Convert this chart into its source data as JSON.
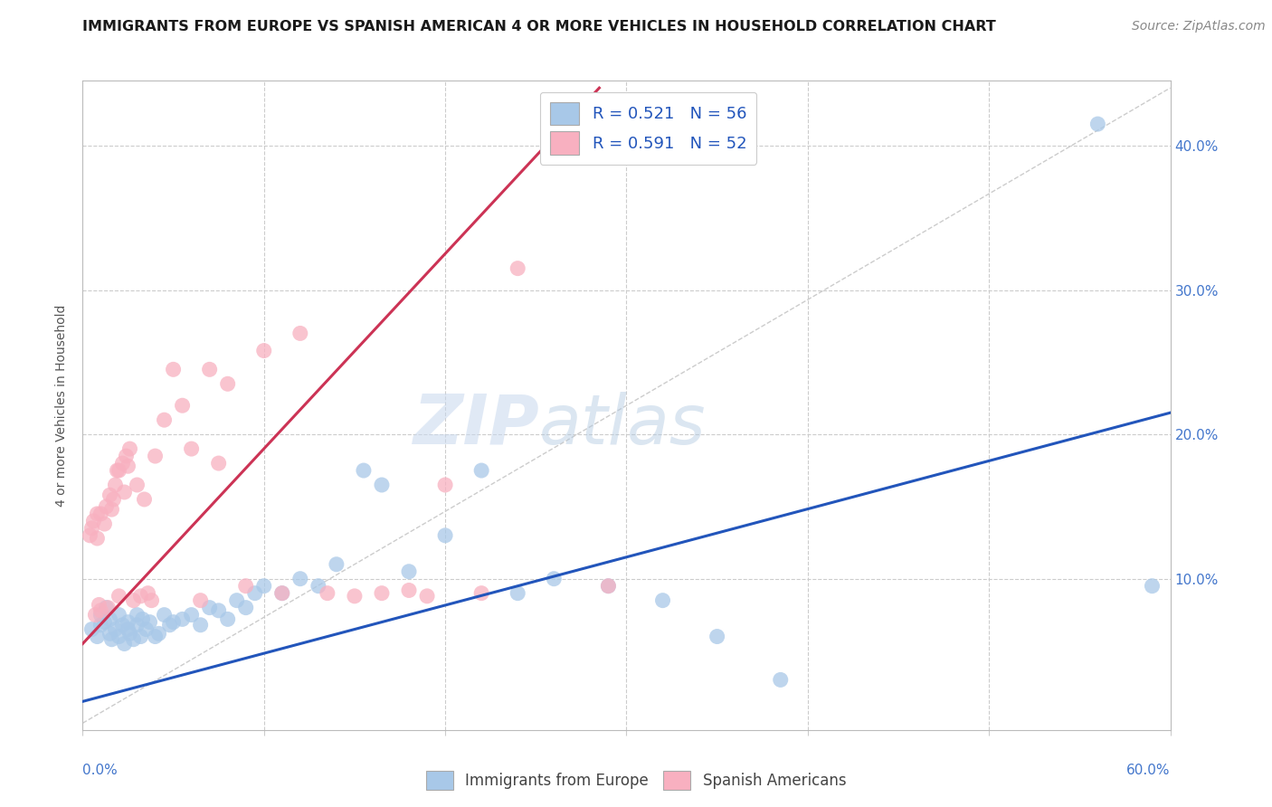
{
  "title": "IMMIGRANTS FROM EUROPE VS SPANISH AMERICAN 4 OR MORE VEHICLES IN HOUSEHOLD CORRELATION CHART",
  "source": "Source: ZipAtlas.com",
  "ylabel": "4 or more Vehicles in Household",
  "yticks_right": [
    "10.0%",
    "20.0%",
    "30.0%",
    "40.0%"
  ],
  "ytick_vals": [
    0.1,
    0.2,
    0.3,
    0.4
  ],
  "xlim": [
    0.0,
    0.6
  ],
  "ylim": [
    -0.005,
    0.445
  ],
  "legend_entry1": "R = 0.521   N = 56",
  "legend_entry2": "R = 0.591   N = 52",
  "legend_label1": "Immigrants from Europe",
  "legend_label2": "Spanish Americans",
  "color_blue": "#a8c8e8",
  "color_pink": "#f8b0c0",
  "line_blue": "#2255bb",
  "line_pink": "#cc3355",
  "watermark_zip": "ZIP",
  "watermark_atlas": "atlas",
  "blue_line_x": [
    0.0,
    0.6
  ],
  "blue_line_y": [
    0.015,
    0.215
  ],
  "pink_line_x": [
    0.0,
    0.285
  ],
  "pink_line_y": [
    0.055,
    0.44
  ],
  "diag_line_x": [
    0.0,
    0.6
  ],
  "diag_line_y": [
    0.0,
    0.44
  ],
  "blue_scatter_x": [
    0.005,
    0.008,
    0.01,
    0.01,
    0.012,
    0.013,
    0.015,
    0.015,
    0.016,
    0.018,
    0.02,
    0.02,
    0.022,
    0.023,
    0.025,
    0.025,
    0.026,
    0.028,
    0.03,
    0.03,
    0.032,
    0.033,
    0.035,
    0.037,
    0.04,
    0.042,
    0.045,
    0.048,
    0.05,
    0.055,
    0.06,
    0.065,
    0.07,
    0.075,
    0.08,
    0.085,
    0.09,
    0.095,
    0.1,
    0.11,
    0.12,
    0.13,
    0.14,
    0.155,
    0.165,
    0.18,
    0.2,
    0.22,
    0.24,
    0.26,
    0.29,
    0.32,
    0.35,
    0.385,
    0.56,
    0.59
  ],
  "blue_scatter_y": [
    0.065,
    0.06,
    0.075,
    0.068,
    0.07,
    0.08,
    0.062,
    0.072,
    0.058,
    0.065,
    0.06,
    0.075,
    0.068,
    0.055,
    0.065,
    0.07,
    0.062,
    0.058,
    0.075,
    0.068,
    0.06,
    0.072,
    0.065,
    0.07,
    0.06,
    0.062,
    0.075,
    0.068,
    0.07,
    0.072,
    0.075,
    0.068,
    0.08,
    0.078,
    0.072,
    0.085,
    0.08,
    0.09,
    0.095,
    0.09,
    0.1,
    0.095,
    0.11,
    0.175,
    0.165,
    0.105,
    0.13,
    0.175,
    0.09,
    0.1,
    0.095,
    0.085,
    0.06,
    0.03,
    0.415,
    0.095
  ],
  "pink_scatter_x": [
    0.004,
    0.005,
    0.006,
    0.007,
    0.008,
    0.008,
    0.009,
    0.01,
    0.01,
    0.012,
    0.013,
    0.014,
    0.015,
    0.016,
    0.017,
    0.018,
    0.019,
    0.02,
    0.02,
    0.022,
    0.023,
    0.024,
    0.025,
    0.026,
    0.028,
    0.03,
    0.032,
    0.034,
    0.036,
    0.038,
    0.04,
    0.045,
    0.05,
    0.055,
    0.06,
    0.065,
    0.07,
    0.075,
    0.08,
    0.09,
    0.1,
    0.11,
    0.12,
    0.135,
    0.15,
    0.165,
    0.18,
    0.19,
    0.2,
    0.22,
    0.24,
    0.29
  ],
  "pink_scatter_y": [
    0.13,
    0.135,
    0.14,
    0.075,
    0.128,
    0.145,
    0.082,
    0.078,
    0.145,
    0.138,
    0.15,
    0.08,
    0.158,
    0.148,
    0.155,
    0.165,
    0.175,
    0.175,
    0.088,
    0.18,
    0.16,
    0.185,
    0.178,
    0.19,
    0.085,
    0.165,
    0.088,
    0.155,
    0.09,
    0.085,
    0.185,
    0.21,
    0.245,
    0.22,
    0.19,
    0.085,
    0.245,
    0.18,
    0.235,
    0.095,
    0.258,
    0.09,
    0.27,
    0.09,
    0.088,
    0.09,
    0.092,
    0.088,
    0.165,
    0.09,
    0.315,
    0.095
  ]
}
